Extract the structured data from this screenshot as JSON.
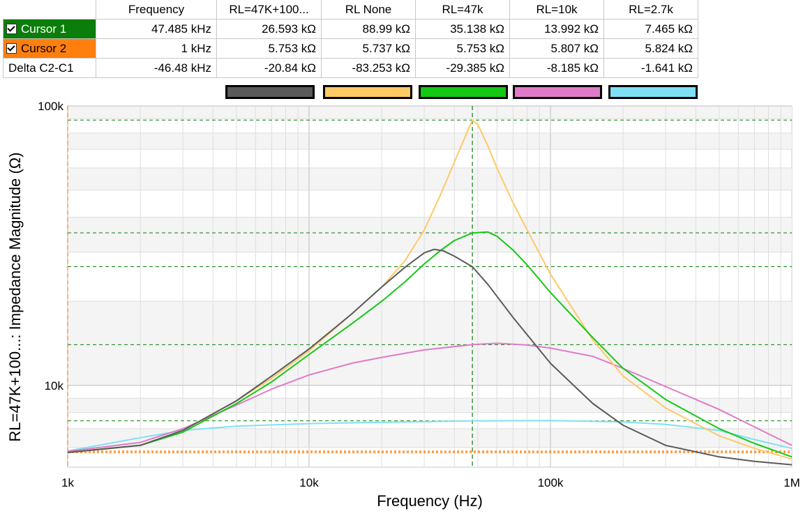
{
  "cursor_table": {
    "headers": [
      "Frequency",
      "RL=47K+100...",
      "RL None",
      "RL=47k",
      "RL=10k",
      "RL=2.7k"
    ],
    "rows": [
      {
        "label": "Cursor 1",
        "checked": true,
        "color": "#0a7d0a",
        "cells": [
          "47.485 kHz",
          "26.593 kΩ",
          "88.99 kΩ",
          "35.138 kΩ",
          "13.992 kΩ",
          "7.465 kΩ"
        ]
      },
      {
        "label": "Cursor 2",
        "checked": true,
        "color": "#ff7f0e",
        "cells": [
          "1 kHz",
          "5.753 kΩ",
          "5.737 kΩ",
          "5.753 kΩ",
          "5.807 kΩ",
          "5.824 kΩ"
        ]
      },
      {
        "label": "Delta C2-C1",
        "checked": false,
        "color": "",
        "cells": [
          "-46.48 kHz",
          "-20.84 kΩ",
          "-83.253 kΩ",
          "-29.385 kΩ",
          "-8.185 kΩ",
          "-1.641 kΩ"
        ]
      }
    ]
  },
  "chart_data": {
    "type": "line",
    "xlabel": "Frequency (Hz)",
    "ylabel": "RL=47K+100...: Impedance Magnitude (Ω)",
    "xscale": "log",
    "yscale": "log",
    "xlim": [
      1000,
      1000000
    ],
    "ylim": [
      5100,
      100000
    ],
    "x_ticks": [
      {
        "v": 1000,
        "label": "1k"
      },
      {
        "v": 10000,
        "label": "10k"
      },
      {
        "v": 100000,
        "label": "100k"
      },
      {
        "v": 1000000,
        "label": "1M"
      }
    ],
    "y_ticks": [
      {
        "v": 10000,
        "label": "10k"
      },
      {
        "v": 100000,
        "label": "100k"
      }
    ],
    "grid": true,
    "cursors": {
      "c1": {
        "x": 47485,
        "color": "#0a7d0a",
        "y_levels": [
          26593,
          88990,
          35138,
          13992,
          7465
        ]
      },
      "c2": {
        "x": 1000,
        "color": "#ff7f0e",
        "y_levels": [
          5753,
          5737,
          5807,
          5824
        ]
      }
    },
    "series": [
      {
        "name": "RL=47K+100...",
        "color": "#5a5a5a",
        "x": [
          1000,
          2000,
          3000,
          5000,
          7000,
          10000,
          15000,
          20000,
          25000,
          30000,
          33000,
          36000,
          40000,
          47485,
          55000,
          70000,
          100000,
          150000,
          200000,
          300000,
          500000,
          700000,
          1000000
        ],
        "y": [
          5753,
          6100,
          6900,
          8800,
          10800,
          13500,
          18000,
          22500,
          26500,
          29800,
          30700,
          30300,
          29000,
          26593,
          23000,
          17500,
          12000,
          8600,
          7200,
          6100,
          5550,
          5350,
          5200
        ]
      },
      {
        "name": "RL None",
        "color": "#ffc966",
        "x": [
          1000,
          2000,
          3000,
          5000,
          7000,
          10000,
          15000,
          20000,
          25000,
          30000,
          35000,
          40000,
          45000,
          47485,
          50000,
          55000,
          60000,
          70000,
          80000,
          100000,
          150000,
          200000,
          300000,
          500000,
          700000,
          1000000
        ],
        "y": [
          5737,
          6100,
          6900,
          8800,
          10600,
          13300,
          18000,
          22500,
          28000,
          36000,
          48000,
          63000,
          80000,
          88990,
          86000,
          72000,
          60000,
          45000,
          36000,
          25000,
          14500,
          10800,
          8300,
          6600,
          5950,
          5450
        ]
      },
      {
        "name": "RL=47k",
        "color": "#14c814",
        "x": [
          1000,
          2000,
          3000,
          5000,
          7000,
          10000,
          15000,
          20000,
          25000,
          30000,
          35000,
          40000,
          47485,
          55000,
          60000,
          70000,
          80000,
          100000,
          150000,
          200000,
          300000,
          500000,
          700000,
          1000000
        ],
        "y": [
          5753,
          6100,
          6800,
          8600,
          10300,
          12900,
          16600,
          20000,
          23500,
          27200,
          30400,
          33000,
          35138,
          35400,
          34200,
          30500,
          27000,
          21500,
          14800,
          11500,
          8900,
          7000,
          6200,
          5550
        ]
      },
      {
        "name": "RL=10k",
        "color": "#e07ac8",
        "x": [
          1000,
          2000,
          3000,
          5000,
          7000,
          10000,
          15000,
          20000,
          30000,
          47485,
          60000,
          80000,
          100000,
          150000,
          200000,
          300000,
          500000,
          700000,
          1000000
        ],
        "y": [
          5807,
          6250,
          7000,
          8500,
          9700,
          10900,
          12000,
          12600,
          13400,
          13992,
          14150,
          13950,
          13600,
          12700,
          11500,
          9900,
          8200,
          7100,
          6100
        ]
      },
      {
        "name": "RL=2.7k",
        "color": "#7fe0f5",
        "x": [
          1000,
          2000,
          3000,
          5000,
          10000,
          20000,
          47485,
          100000,
          200000,
          300000,
          500000,
          700000,
          1000000
        ],
        "y": [
          5824,
          6500,
          6900,
          7150,
          7300,
          7380,
          7465,
          7480,
          7400,
          7250,
          6900,
          6400,
          5950
        ]
      }
    ]
  }
}
